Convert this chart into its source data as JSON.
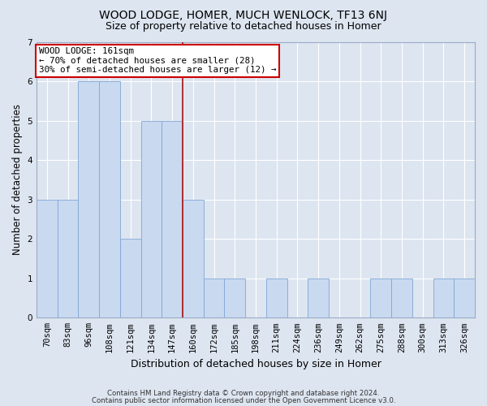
{
  "title": "WOOD LODGE, HOMER, MUCH WENLOCK, TF13 6NJ",
  "subtitle": "Size of property relative to detached houses in Homer",
  "xlabel": "Distribution of detached houses by size in Homer",
  "ylabel": "Number of detached properties",
  "footer_line1": "Contains HM Land Registry data © Crown copyright and database right 2024.",
  "footer_line2": "Contains public sector information licensed under the Open Government Licence v3.0.",
  "categories": [
    "70sqm",
    "83sqm",
    "96sqm",
    "108sqm",
    "121sqm",
    "134sqm",
    "147sqm",
    "160sqm",
    "172sqm",
    "185sqm",
    "198sqm",
    "211sqm",
    "224sqm",
    "236sqm",
    "249sqm",
    "262sqm",
    "275sqm",
    "288sqm",
    "300sqm",
    "313sqm",
    "326sqm"
  ],
  "values": [
    3,
    3,
    6,
    6,
    2,
    5,
    5,
    3,
    1,
    1,
    0,
    1,
    0,
    1,
    0,
    0,
    1,
    1,
    0,
    1,
    1
  ],
  "bar_color": "#c9d9f0",
  "bar_edge_color": "#7fa8d4",
  "highlight_line_index": 7,
  "annotation_line1": "WOOD LODGE: 161sqm",
  "annotation_line2": "← 70% of detached houses are smaller (28)",
  "annotation_line3": "30% of semi-detached houses are larger (12) →",
  "annotation_box_color": "#ffffff",
  "annotation_box_edge_color": "#cc0000",
  "ylim": [
    0,
    7
  ],
  "yticks": [
    0,
    1,
    2,
    3,
    4,
    5,
    6,
    7
  ],
  "bg_color": "#dde5f0",
  "plot_bg_color": "#dde5f0",
  "title_fontsize": 10,
  "subtitle_fontsize": 9,
  "tick_fontsize": 7.5,
  "ylabel_fontsize": 8.5,
  "xlabel_fontsize": 9,
  "footer_fontsize": 6.2,
  "grid_color": "#ffffff",
  "red_line_color": "#aa2222"
}
